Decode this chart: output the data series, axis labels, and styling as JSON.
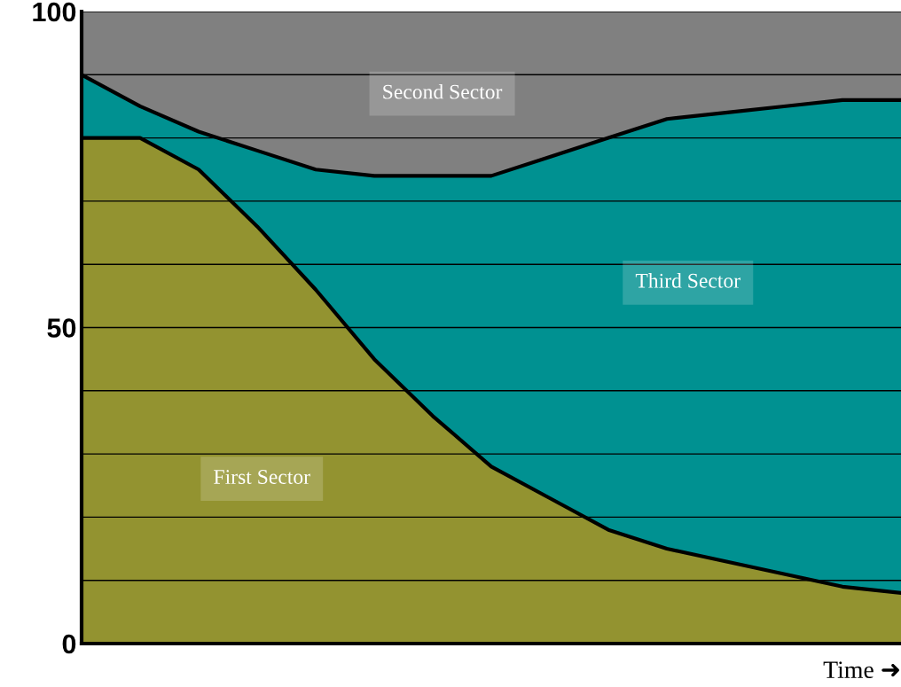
{
  "chart_data": {
    "type": "area",
    "stacked": true,
    "xlabel": "Time ➜",
    "categories": [
      null,
      null,
      null,
      null,
      null,
      null,
      null,
      null,
      null,
      null,
      null,
      null,
      null,
      null,
      null
    ],
    "series": [
      {
        "name": "First Sector",
        "color": "#939330",
        "values": [
          80,
          80,
          75,
          66,
          56,
          45,
          36,
          28,
          23,
          18,
          15,
          13,
          11,
          9,
          8
        ]
      },
      {
        "name": "Third Sector",
        "color": "#009191",
        "values": [
          10,
          5,
          6,
          12,
          19,
          29,
          38,
          46,
          54,
          62,
          68,
          71,
          74,
          77,
          78
        ]
      },
      {
        "name": "Second Sector",
        "color": "#808080",
        "values": [
          10,
          15,
          19,
          22,
          25,
          26,
          26,
          26,
          23,
          20,
          17,
          16,
          15,
          14,
          14
        ]
      }
    ],
    "ylim": [
      0,
      100
    ],
    "yticks": [
      0,
      {
        "value": 10,
        "label": null
      },
      {
        "value": 20,
        "label": null
      },
      {
        "value": 30,
        "label": null
      },
      {
        "value": 40,
        "label": null
      },
      50,
      {
        "value": 60,
        "label": null
      },
      {
        "value": 70,
        "label": null
      },
      {
        "value": 80,
        "label": null
      },
      {
        "value": 90,
        "label": null
      },
      100
    ],
    "grid": "y",
    "legend": false,
    "tick_labels": "y"
  }
}
